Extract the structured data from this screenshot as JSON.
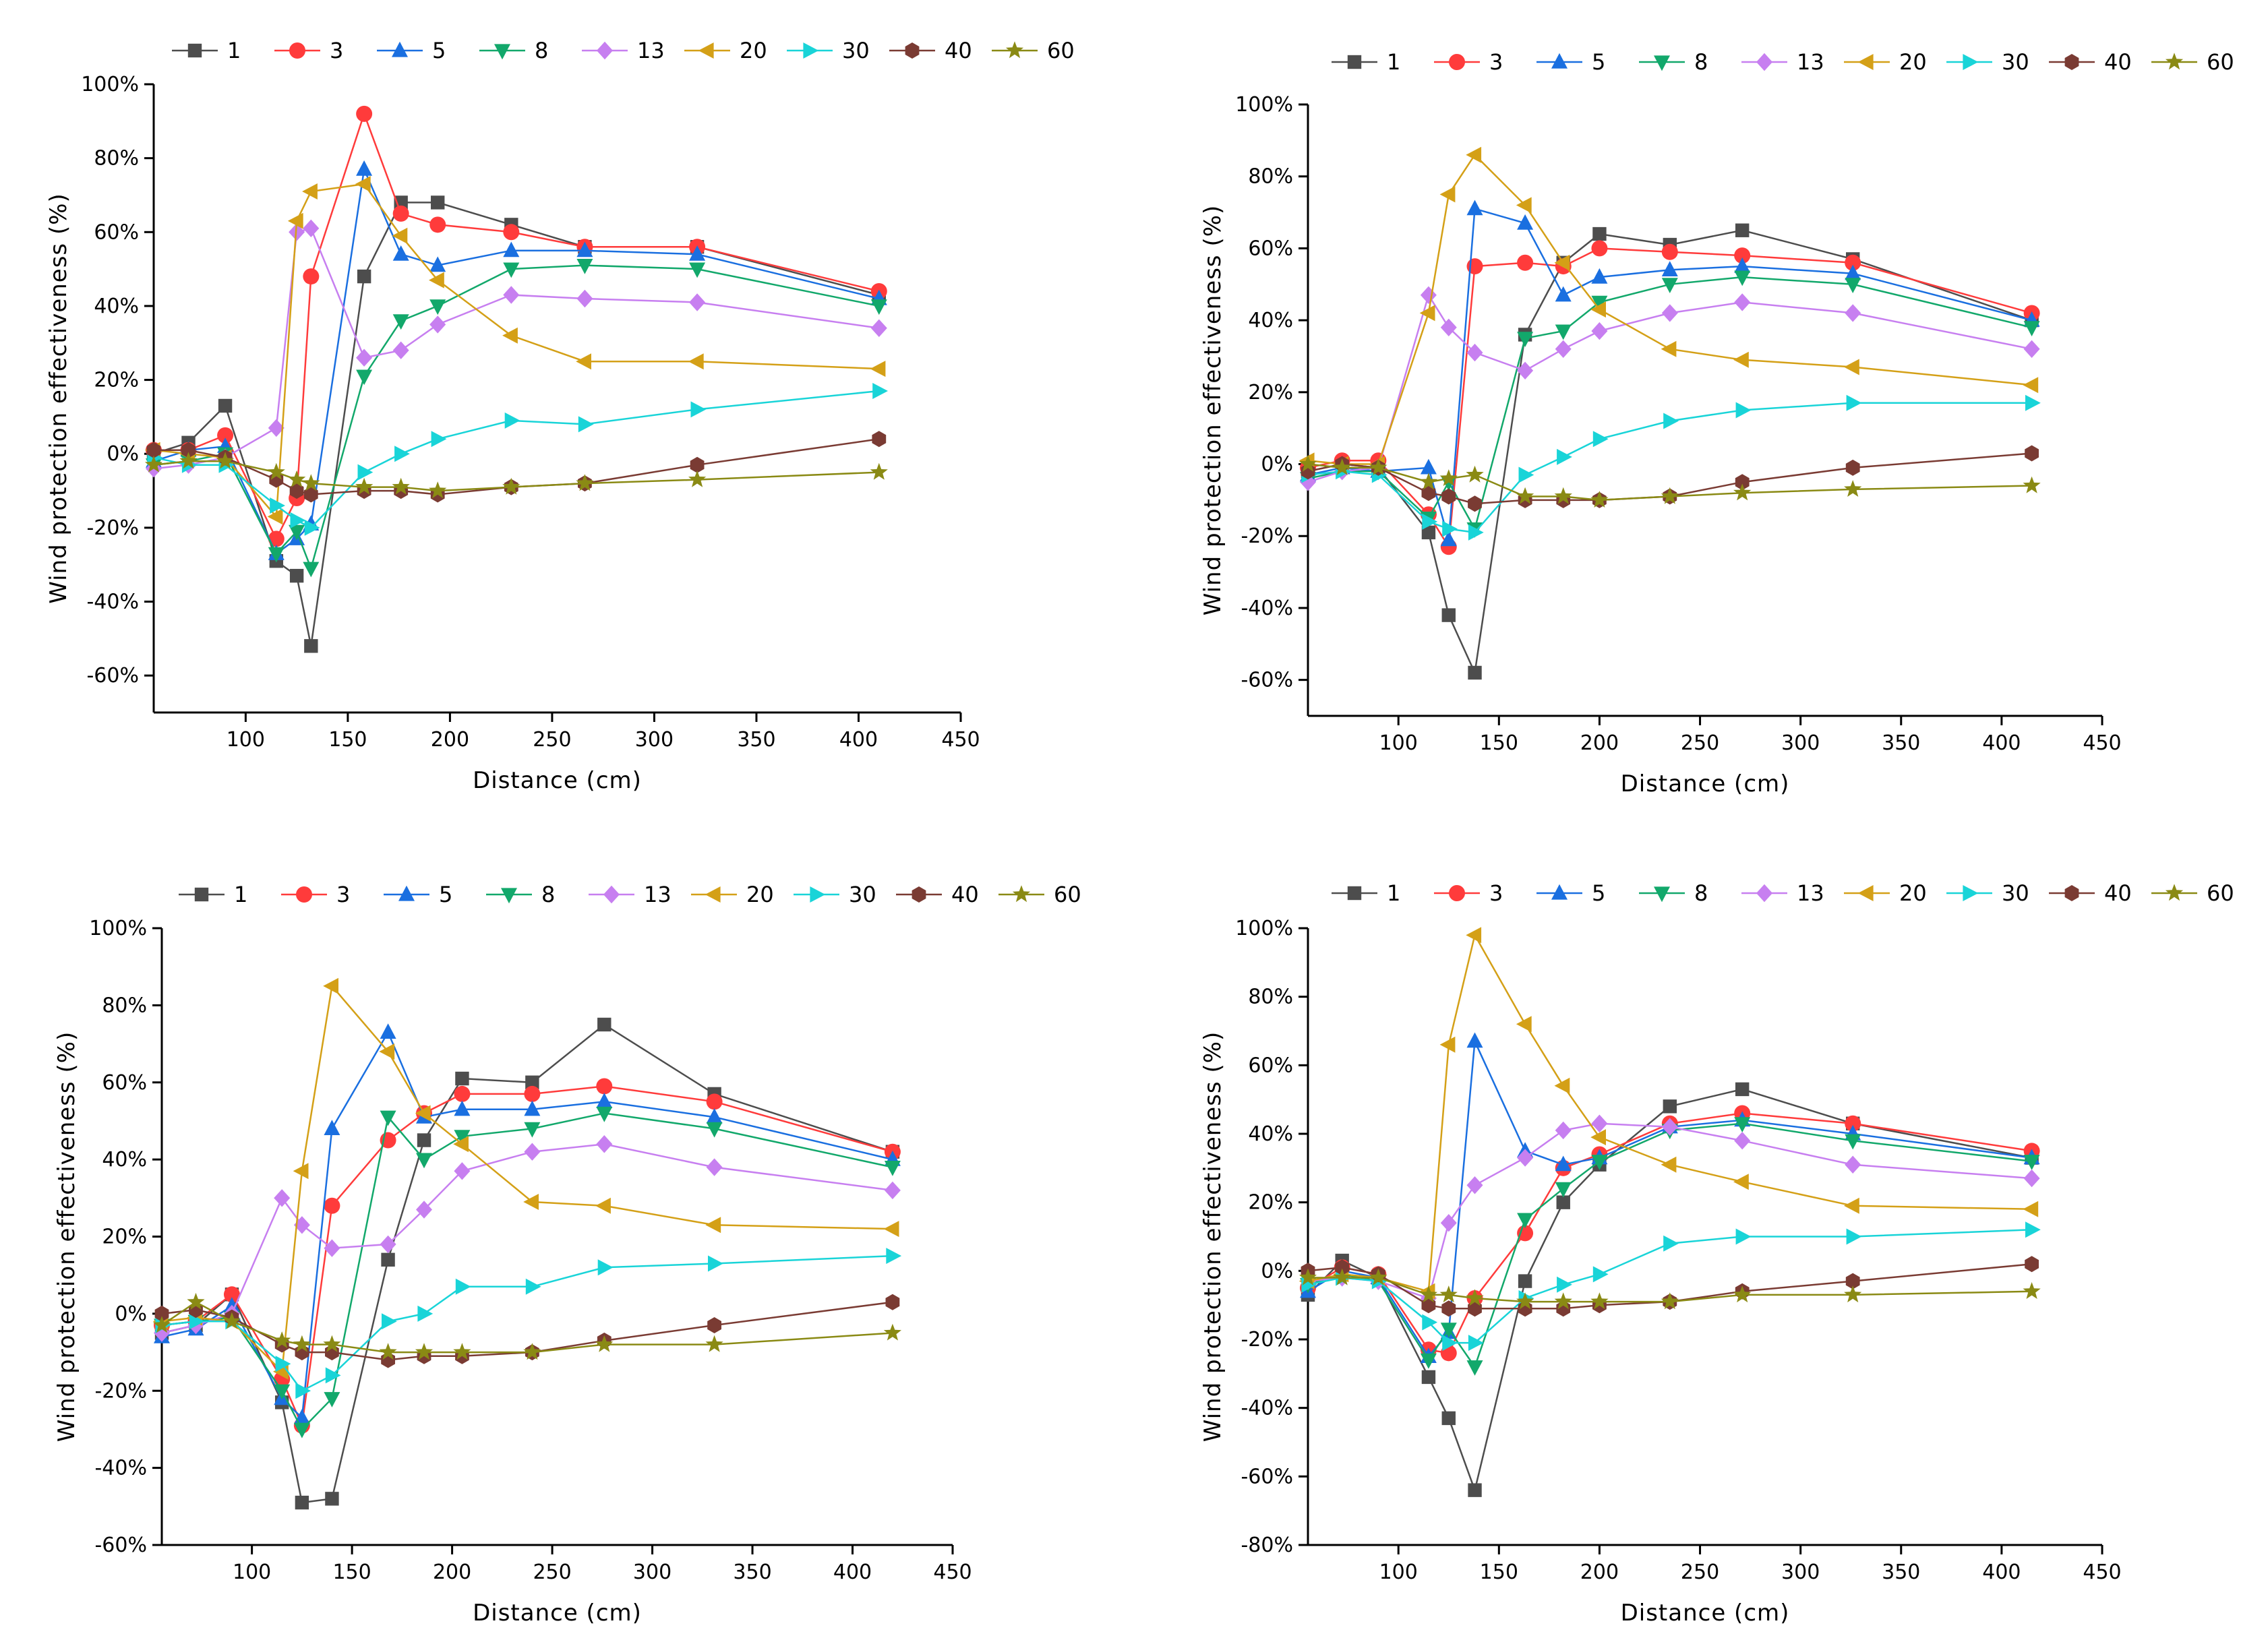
{
  "figure": {
    "legend_markers": {
      "1": "square",
      "3": "circle",
      "5": "triangle-up",
      "8": "triangle-down",
      "13": "diamond",
      "20": "triangle-left",
      "30": "triangle-right",
      "40": "hexagon",
      "60": "star"
    },
    "series_colors": {
      "1": "#4d4d4d",
      "3": "#ff3b3b",
      "5": "#1a6fe0",
      "8": "#12a86b",
      "13": "#c77ff0",
      "20": "#d4a017",
      "30": "#19d4d8",
      "40": "#7a3b33",
      "60": "#8a8a14"
    }
  },
  "chart_data": [
    {
      "type": "line",
      "position": "top-left",
      "xlabel": "Distance (cm)",
      "ylabel": "Wind protection effectiveness (%)",
      "xlim": [
        55,
        450
      ],
      "ylim": [
        -70,
        100
      ],
      "xticks": [
        100,
        150,
        200,
        250,
        300,
        350,
        400,
        450
      ],
      "xtick_labels": [
        "100",
        "150",
        "200",
        "250",
        "300",
        "350",
        "400",
        "450"
      ],
      "yticks": [
        -60,
        -40,
        -20,
        0,
        20,
        40,
        60,
        80,
        100
      ],
      "ytick_labels": [
        "-60%",
        "-40%",
        "-20%",
        "0%",
        "20%",
        "40%",
        "60%",
        "80%",
        "100%"
      ],
      "legend": [
        "1",
        "3",
        "5",
        "8",
        "13",
        "20",
        "30",
        "40",
        "60"
      ],
      "x": [
        55,
        72,
        90,
        115,
        125,
        132,
        158,
        176,
        194,
        230,
        266,
        321,
        410
      ],
      "series": [
        {
          "name": "1",
          "values": [
            0,
            3,
            13,
            -29,
            -33,
            -52,
            48,
            68,
            68,
            62,
            56,
            56,
            43
          ]
        },
        {
          "name": "3",
          "values": [
            1,
            1,
            5,
            -23,
            -12,
            48,
            92,
            65,
            62,
            60,
            56,
            56,
            44
          ]
        },
        {
          "name": "5",
          "values": [
            -2,
            1,
            2,
            -27,
            -23,
            -19,
            77,
            54,
            51,
            55,
            55,
            54,
            42
          ]
        },
        {
          "name": "8",
          "values": [
            -3,
            -2,
            0,
            -27,
            -21,
            -31,
            21,
            36,
            40,
            50,
            51,
            50,
            40
          ]
        },
        {
          "name": "13",
          "values": [
            -4,
            -3,
            -1,
            7,
            60,
            61,
            26,
            28,
            35,
            43,
            42,
            41,
            34
          ]
        },
        {
          "name": "20",
          "values": [
            1,
            0,
            -1,
            -17,
            63,
            71,
            73,
            59,
            47,
            32,
            25,
            25,
            23
          ]
        },
        {
          "name": "30",
          "values": [
            -1,
            -3,
            -3,
            -14,
            -18,
            -20,
            -5,
            0,
            4,
            9,
            8,
            12,
            17
          ]
        },
        {
          "name": "40",
          "values": [
            1,
            1,
            -1,
            -7,
            -10,
            -11,
            -10,
            -10,
            -11,
            -9,
            -8,
            -3,
            4
          ]
        },
        {
          "name": "60",
          "values": [
            -3,
            -2,
            -2,
            -5,
            -7,
            -8,
            -9,
            -9,
            -10,
            -9,
            -8,
            -7,
            -5
          ]
        }
      ]
    },
    {
      "type": "line",
      "position": "top-right",
      "xlabel": "Distance (cm)",
      "ylabel": "Wind protection effectiveness (%)",
      "xlim": [
        55,
        450
      ],
      "ylim": [
        -70,
        100
      ],
      "xticks": [
        100,
        150,
        200,
        250,
        300,
        350,
        400,
        450
      ],
      "xtick_labels": [
        "100",
        "150",
        "200",
        "250",
        "300",
        "350",
        "400",
        "450"
      ],
      "yticks": [
        -60,
        -40,
        -20,
        0,
        20,
        40,
        60,
        80,
        100
      ],
      "ytick_labels": [
        "-60%",
        "-40%",
        "-20%",
        "0%",
        "20%",
        "40%",
        "60%",
        "80%",
        "100%"
      ],
      "legend": [
        "1",
        "3",
        "5",
        "8",
        "13",
        "20",
        "30",
        "40",
        "60"
      ],
      "x": [
        55,
        72,
        90,
        115,
        125,
        138,
        163,
        182,
        200,
        235,
        271,
        326,
        415
      ],
      "series": [
        {
          "name": "1",
          "values": [
            -2,
            0,
            -1,
            -19,
            -42,
            -58,
            36,
            56,
            64,
            61,
            65,
            57,
            40
          ]
        },
        {
          "name": "3",
          "values": [
            -1,
            1,
            1,
            -14,
            -23,
            55,
            56,
            55,
            60,
            59,
            58,
            56,
            42
          ]
        },
        {
          "name": "5",
          "values": [
            -3,
            -1,
            -2,
            -1,
            -21,
            71,
            67,
            47,
            52,
            54,
            55,
            53,
            40
          ]
        },
        {
          "name": "8",
          "values": [
            -4,
            -2,
            -2,
            -15,
            -5,
            -18,
            35,
            37,
            45,
            50,
            52,
            50,
            38
          ]
        },
        {
          "name": "13",
          "values": [
            -5,
            -2,
            -1,
            47,
            38,
            31,
            26,
            32,
            37,
            42,
            45,
            42,
            32
          ]
        },
        {
          "name": "20",
          "values": [
            1,
            0,
            0,
            42,
            75,
            86,
            72,
            56,
            43,
            32,
            29,
            27,
            22
          ]
        },
        {
          "name": "30",
          "values": [
            -3,
            -2,
            -3,
            -16,
            -18,
            -19,
            -3,
            2,
            7,
            12,
            15,
            17,
            17
          ]
        },
        {
          "name": "40",
          "values": [
            -2,
            0,
            -1,
            -8,
            -9,
            -11,
            -10,
            -10,
            -10,
            -9,
            -5,
            -1,
            3
          ]
        },
        {
          "name": "60",
          "values": [
            0,
            -1,
            -1,
            -5,
            -4,
            -3,
            -9,
            -9,
            -10,
            -9,
            -8,
            -7,
            -6
          ]
        }
      ]
    },
    {
      "type": "line",
      "position": "bottom-left",
      "xlabel": "Distance (cm)",
      "ylabel": "Wind protection effectiveness (%)",
      "xlim": [
        55,
        450
      ],
      "ylim": [
        -60,
        100
      ],
      "xticks": [
        100,
        150,
        200,
        250,
        300,
        350,
        400,
        450
      ],
      "xtick_labels": [
        "100",
        "150",
        "200",
        "250",
        "300",
        "350",
        "400",
        "450"
      ],
      "yticks": [
        -60,
        -40,
        -20,
        0,
        20,
        40,
        60,
        80,
        100
      ],
      "ytick_labels": [
        "-60%",
        "-40%",
        "-20%",
        "0%",
        "20%",
        "40%",
        "60%",
        "80%",
        "100%"
      ],
      "legend": [
        "1",
        "3",
        "5",
        "8",
        "13",
        "20",
        "30",
        "40",
        "60"
      ],
      "x": [
        55,
        72,
        90,
        115,
        125,
        140,
        168,
        186,
        205,
        240,
        276,
        331,
        420
      ],
      "series": [
        {
          "name": "1",
          "values": [
            -5,
            -3,
            5,
            -23,
            -49,
            -48,
            14,
            45,
            61,
            60,
            75,
            57,
            42
          ]
        },
        {
          "name": "3",
          "values": [
            -3,
            -2,
            5,
            -17,
            -29,
            28,
            45,
            52,
            57,
            57,
            59,
            55,
            42
          ]
        },
        {
          "name": "5",
          "values": [
            -6,
            -4,
            2,
            -22,
            -27,
            48,
            73,
            51,
            53,
            53,
            55,
            51,
            40
          ]
        },
        {
          "name": "8",
          "values": [
            -3,
            -2,
            -1,
            -20,
            -30,
            -22,
            51,
            40,
            46,
            48,
            52,
            48,
            38
          ]
        },
        {
          "name": "13",
          "values": [
            -5,
            -3,
            0,
            30,
            23,
            17,
            18,
            27,
            37,
            42,
            44,
            38,
            32
          ]
        },
        {
          "name": "20",
          "values": [
            -2,
            -1,
            -2,
            -15,
            37,
            85,
            68,
            52,
            44,
            29,
            28,
            23,
            22
          ]
        },
        {
          "name": "30",
          "values": [
            -3,
            -2,
            -2,
            -13,
            -20,
            -16,
            -2,
            0,
            7,
            7,
            12,
            13,
            15
          ]
        },
        {
          "name": "40",
          "values": [
            0,
            1,
            -1,
            -8,
            -10,
            -10,
            -12,
            -11,
            -11,
            -10,
            -7,
            -3,
            3
          ]
        },
        {
          "name": "60",
          "values": [
            -3,
            3,
            -2,
            -7,
            -8,
            -8,
            -10,
            -10,
            -10,
            -10,
            -8,
            -8,
            -5
          ]
        }
      ]
    },
    {
      "type": "line",
      "position": "bottom-right",
      "xlabel": "Distance (cm)",
      "ylabel": "Wind protection effectiveness (%)",
      "xlim": [
        55,
        450
      ],
      "ylim": [
        -80,
        100
      ],
      "xticks": [
        100,
        150,
        200,
        250,
        300,
        350,
        400,
        450
      ],
      "xtick_labels": [
        "100",
        "150",
        "200",
        "250",
        "300",
        "350",
        "400",
        "450"
      ],
      "yticks": [
        -80,
        -60,
        -40,
        -20,
        0,
        20,
        40,
        60,
        80,
        100
      ],
      "ytick_labels": [
        "-80%",
        "-60%",
        "-40%",
        "-20%",
        "0%",
        "20%",
        "40%",
        "60%",
        "80%",
        "100%"
      ],
      "legend": [
        "1",
        "3",
        "5",
        "8",
        "13",
        "20",
        "30",
        "40",
        "60"
      ],
      "x": [
        55,
        72,
        90,
        115,
        125,
        138,
        163,
        182,
        200,
        235,
        271,
        326,
        415
      ],
      "series": [
        {
          "name": "1",
          "values": [
            -7,
            3,
            -2,
            -31,
            -43,
            -64,
            -3,
            20,
            31,
            48,
            53,
            43,
            33
          ]
        },
        {
          "name": "3",
          "values": [
            -5,
            1,
            -1,
            -23,
            -24,
            -8,
            11,
            30,
            34,
            43,
            46,
            43,
            35
          ]
        },
        {
          "name": "5",
          "values": [
            -6,
            0,
            -2,
            -25,
            -18,
            67,
            35,
            31,
            33,
            42,
            44,
            40,
            33
          ]
        },
        {
          "name": "8",
          "values": [
            -4,
            -1,
            -3,
            -26,
            -17,
            -28,
            15,
            24,
            32,
            41,
            43,
            38,
            32
          ]
        },
        {
          "name": "13",
          "values": [
            -3,
            -2,
            -3,
            -8,
            14,
            25,
            33,
            41,
            43,
            42,
            38,
            31,
            27
          ]
        },
        {
          "name": "20",
          "values": [
            -3,
            -1,
            -2,
            -6,
            66,
            98,
            72,
            54,
            39,
            31,
            26,
            19,
            18
          ]
        },
        {
          "name": "30",
          "values": [
            -4,
            -2,
            -3,
            -15,
            -21,
            -21,
            -8,
            -4,
            -1,
            8,
            10,
            10,
            12
          ]
        },
        {
          "name": "40",
          "values": [
            0,
            1,
            -1,
            -10,
            -11,
            -11,
            -11,
            -11,
            -10,
            -9,
            -6,
            -3,
            2
          ]
        },
        {
          "name": "60",
          "values": [
            -2,
            -2,
            -2,
            -7,
            -7,
            -8,
            -9,
            -9,
            -9,
            -9,
            -7,
            -7,
            -6
          ]
        }
      ]
    }
  ]
}
